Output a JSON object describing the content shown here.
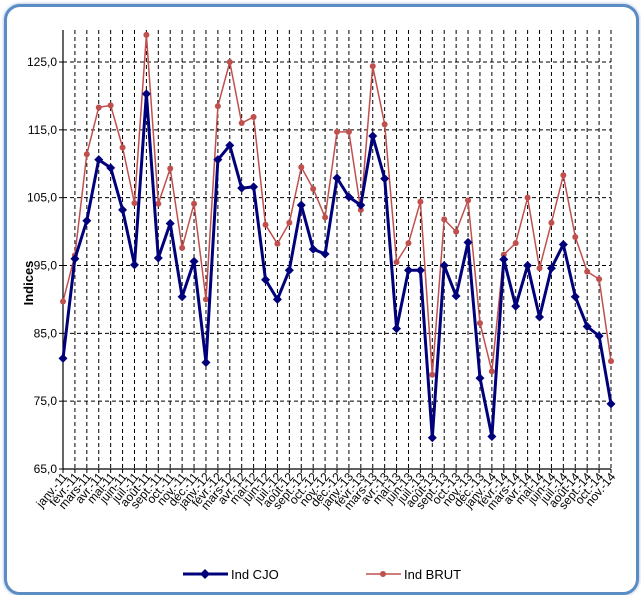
{
  "chart_data": {
    "type": "line",
    "ylabel": "Indices",
    "ylim": [
      65,
      128
    ],
    "yticks": [
      "65,0",
      "75,0",
      "85,0",
      "95,0",
      "105,0",
      "115,0",
      "125,0"
    ],
    "grid": true,
    "legend_position": "bottom",
    "categories": [
      "janv.-11",
      "févr.-11",
      "mars-11",
      "avr.-11",
      "mai-11",
      "juin-11",
      "juil.-11",
      "août-11",
      "sept.-11",
      "oct.-11",
      "nov.-11",
      "déc.-11",
      "janv.-12",
      "févr.-12",
      "mars-12",
      "avr.-12",
      "mai-12",
      "juin-12",
      "juil.-12",
      "août-12",
      "sept.-12",
      "oct.-12",
      "nov.-12",
      "déc.-12",
      "janv.-13",
      "févr.-13",
      "mars-13",
      "avr.-13",
      "mai-13",
      "juin-13",
      "juil.-13",
      "août-13",
      "sept.-13",
      "oct.-13",
      "nov.-13",
      "déc.-13",
      "janv.-14",
      "févr.-14",
      "mars-14",
      "avr.-14",
      "mai-14",
      "juin-14",
      "juil.-14",
      "août-14",
      "sept.-14",
      "oct.-14",
      "nov.-14"
    ],
    "series": [
      {
        "name": "Ind CJO",
        "color": "#00007a",
        "marker": "diamond",
        "values": [
          81.3,
          96.0,
          101.6,
          110.6,
          109.4,
          103.2,
          95.1,
          120.3,
          96.1,
          101.2,
          90.4,
          95.6,
          80.7,
          110.6,
          112.7,
          106.4,
          106.6,
          92.9,
          90.0,
          94.3,
          103.9,
          97.4,
          96.7,
          107.9,
          105.1,
          103.9,
          114.1,
          107.8,
          85.7,
          94.3,
          94.3,
          69.6,
          95.0,
          90.5,
          98.4,
          78.4,
          69.8,
          95.9,
          89.0,
          95.0,
          87.4,
          94.6,
          98.1,
          90.4,
          86.0,
          84.6,
          74.6
        ]
      },
      {
        "name": "Ind BRUT",
        "color": "#c0504d",
        "marker": "dot",
        "values": [
          89.7,
          96.5,
          111.4,
          118.3,
          118.6,
          112.4,
          104.2,
          129.0,
          104.1,
          109.3,
          97.6,
          104.1,
          90.0,
          118.5,
          125.0,
          116.0,
          116.9,
          101.0,
          98.2,
          101.3,
          109.5,
          106.3,
          102.1,
          114.7,
          114.7,
          103.2,
          124.4,
          115.8,
          95.5,
          98.3,
          104.4,
          78.9,
          101.8,
          100.0,
          104.6,
          86.5,
          79.4,
          96.6,
          98.3,
          105.0,
          94.6,
          101.3,
          108.3,
          99.2,
          94.1,
          93.0,
          80.9
        ]
      }
    ]
  }
}
